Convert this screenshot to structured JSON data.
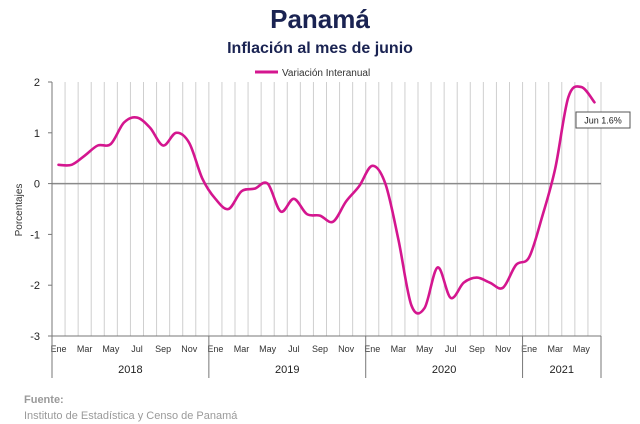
{
  "chart_data": {
    "type": "line",
    "title": "Panamá",
    "subtitle": "Inflación al mes de junio",
    "ylabel": "Porcentajes",
    "xlabel": "",
    "ylim": [
      -3,
      2
    ],
    "yticks": [
      -3,
      -2,
      -1,
      0,
      1,
      2
    ],
    "grid": "vertical",
    "legend_position": "top-center",
    "x_tick_labels": [
      "Ene",
      "Mar",
      "May",
      "Jul",
      "Sep",
      "Nov",
      "Ene",
      "Mar",
      "May",
      "Jul",
      "Sep",
      "Nov",
      "Ene",
      "Mar",
      "May",
      "Jul",
      "Sep",
      "Nov",
      "Ene",
      "Mar",
      "May"
    ],
    "years": [
      "2018",
      "2019",
      "2020",
      "2021"
    ],
    "series": [
      {
        "name": "Variación Interanual",
        "color": "#d4168f",
        "x": [
          "2018-01",
          "2018-02",
          "2018-03",
          "2018-04",
          "2018-05",
          "2018-06",
          "2018-07",
          "2018-08",
          "2018-09",
          "2018-10",
          "2018-11",
          "2018-12",
          "2019-01",
          "2019-02",
          "2019-03",
          "2019-04",
          "2019-05",
          "2019-06",
          "2019-07",
          "2019-08",
          "2019-09",
          "2019-10",
          "2019-11",
          "2019-12",
          "2020-01",
          "2020-02",
          "2020-03",
          "2020-04",
          "2020-05",
          "2020-06",
          "2020-07",
          "2020-08",
          "2020-09",
          "2020-10",
          "2020-11",
          "2020-12",
          "2021-01",
          "2021-02",
          "2021-03",
          "2021-04",
          "2021-05",
          "2021-06"
        ],
        "values": [
          0.37,
          0.37,
          0.55,
          0.75,
          0.78,
          1.2,
          1.3,
          1.1,
          0.75,
          1.0,
          0.8,
          0.1,
          -0.3,
          -0.5,
          -0.15,
          -0.1,
          0.0,
          -0.55,
          -0.3,
          -0.6,
          -0.63,
          -0.75,
          -0.35,
          -0.05,
          0.35,
          0.0,
          -1.1,
          -2.4,
          -2.45,
          -1.65,
          -2.25,
          -1.95,
          -1.85,
          -1.95,
          -2.05,
          -1.6,
          -1.45,
          -0.65,
          0.3,
          1.7,
          1.9,
          1.6
        ]
      }
    ],
    "annotation": "Jun 1.6%"
  },
  "source": {
    "label": "Fuente:",
    "text": "Instituto de Estadística y Censo de Panamá"
  }
}
